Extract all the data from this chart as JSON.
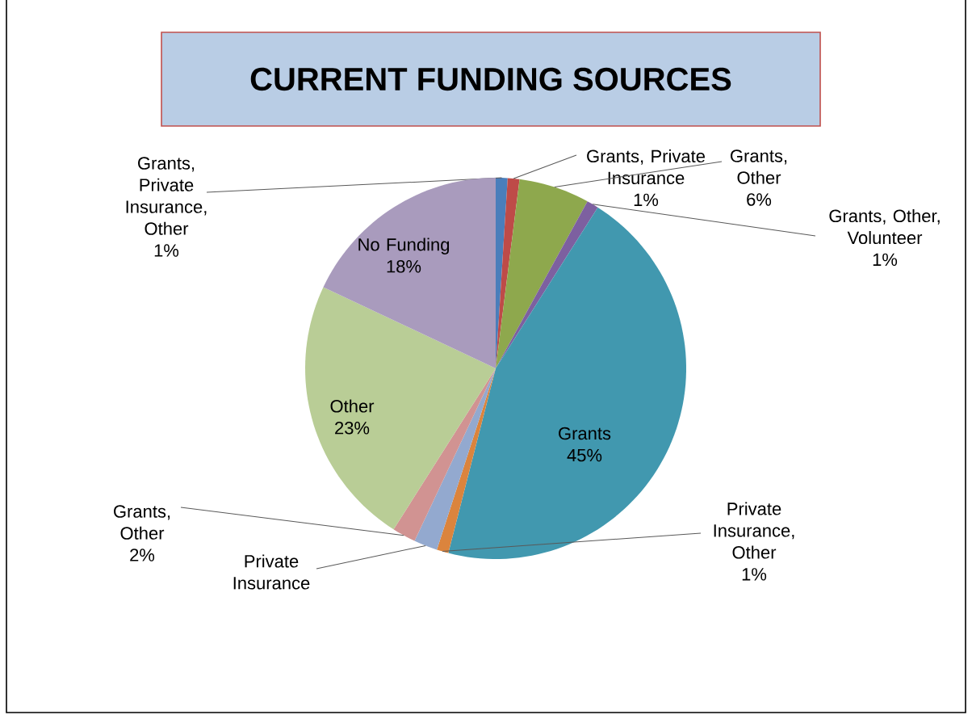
{
  "chart_data": {
    "type": "pie",
    "title": "CURRENT FUNDING SOURCES",
    "categories": [
      "Grants, Private Insurance, Other",
      "Grants, Private Insurance",
      "Grants, Other",
      "Grants, Other, Volunteer",
      "Grants",
      "Private Insurance, Other",
      "Private Insurance",
      "Grants, Other",
      "Other",
      "No Funding"
    ],
    "values": [
      1,
      1,
      6,
      1,
      45,
      1,
      2,
      2,
      23,
      18
    ],
    "value_labels": [
      "1%",
      "1%",
      "6%",
      "1%",
      "45%",
      "1%",
      null,
      "2%",
      "23%",
      "18%"
    ],
    "colors": [
      "#4a7ebb",
      "#be4b48",
      "#8ea84d",
      "#7d60a0",
      "#4198af",
      "#db843d",
      "#93a9cf",
      "#d19392",
      "#b9cd96",
      "#a99bbd"
    ]
  }
}
